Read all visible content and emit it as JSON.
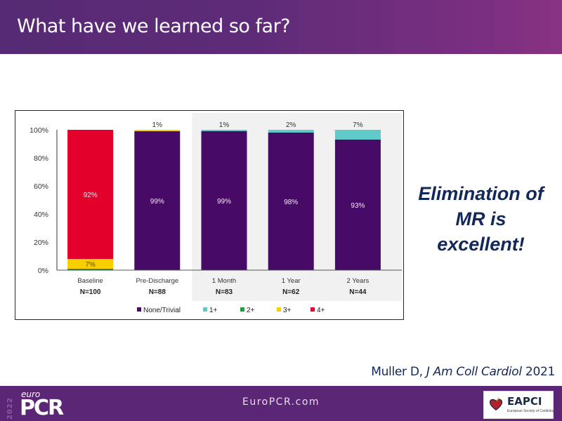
{
  "slide": {
    "title": "What have we learned so far?",
    "callout_lines": [
      "Elimination of",
      "MR is",
      "excellent!"
    ],
    "citation": {
      "author": "Muller D,",
      "journal": "J Am Coll Cardiol",
      "year": "2021"
    },
    "footer": {
      "year": "2022",
      "brand_prefix": "euro",
      "brand": "PCR",
      "website": "EuroPCR.com",
      "partner_logo": "EAPCI",
      "partner_sub": "European Society of Cardiology"
    }
  },
  "chart_data": {
    "type": "bar",
    "stacked": true,
    "title": "",
    "xlabel": "",
    "ylabel": "",
    "ylim": [
      0,
      100
    ],
    "yticks": [
      "0%",
      "20%",
      "40%",
      "60%",
      "80%",
      "100%"
    ],
    "ytick_values": [
      0,
      20,
      40,
      60,
      80,
      100
    ],
    "grid": false,
    "legend_position": "bottom",
    "categories": [
      "Baseline",
      "Pre-Discharge",
      "1 Month",
      "1 Year",
      "2 Years"
    ],
    "sample_sizes": [
      "N=100",
      "N=88",
      "N=83",
      "N=62",
      "N=44"
    ],
    "highlighted_categories": [
      "1 Month",
      "1 Year",
      "2 Years"
    ],
    "series": [
      {
        "name": "None/Trivial",
        "color": "#470a66",
        "values": [
          0,
          99,
          99,
          98,
          93
        ]
      },
      {
        "name": "1+",
        "color": "#5fcac8",
        "values": [
          0,
          0,
          1,
          2,
          7
        ]
      },
      {
        "name": "2+",
        "color": "#1ea03c",
        "values": [
          1,
          0,
          0,
          0,
          0
        ]
      },
      {
        "name": "3+",
        "color": "#f7cf00",
        "values": [
          7,
          1,
          0,
          0,
          0
        ]
      },
      {
        "name": "4+",
        "color": "#e3002b",
        "values": [
          92,
          0,
          0,
          0,
          0
        ]
      }
    ],
    "data_labels": [
      {
        "category": "Baseline",
        "series": "3+",
        "text": "7%",
        "position": "inside"
      },
      {
        "category": "Baseline",
        "series": "4+",
        "text": "92%",
        "position": "inside"
      },
      {
        "category": "Pre-Discharge",
        "series": "None/Trivial",
        "text": "99%",
        "position": "inside"
      },
      {
        "category": "Pre-Discharge",
        "series": "3+",
        "text": "1%",
        "position": "above"
      },
      {
        "category": "1 Month",
        "series": "None/Trivial",
        "text": "99%",
        "position": "inside"
      },
      {
        "category": "1 Month",
        "series": "1+",
        "text": "1%",
        "position": "above"
      },
      {
        "category": "1 Year",
        "series": "None/Trivial",
        "text": "98%",
        "position": "inside"
      },
      {
        "category": "1 Year",
        "series": "1+",
        "text": "2%",
        "position": "above"
      },
      {
        "category": "2 Years",
        "series": "None/Trivial",
        "text": "93%",
        "position": "inside"
      },
      {
        "category": "2 Years",
        "series": "1+",
        "text": "7%",
        "position": "above"
      }
    ]
  }
}
